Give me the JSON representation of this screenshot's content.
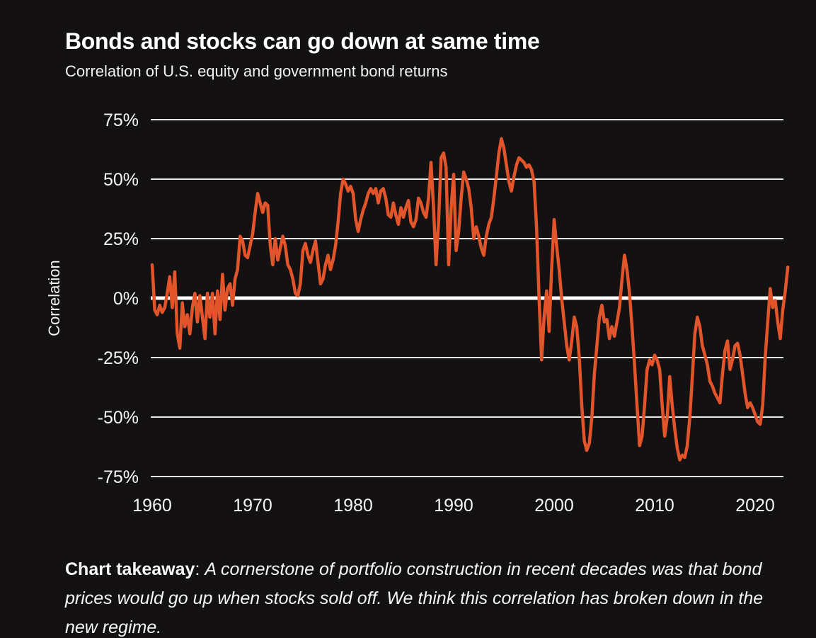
{
  "page": {
    "background_color": "#131111",
    "text_color": "#ffffff"
  },
  "header": {
    "title": "Bonds and stocks can go down at same time",
    "subtitle": "Correlation of U.S. equity and government bond returns"
  },
  "takeaway": {
    "label": "Chart takeaway",
    "separator": ": ",
    "text": "A cornerstone of portfolio construction in recent decades was that bond prices would go up when stocks sold off. We think this correlation has broken down in the new regime."
  },
  "chart_data": {
    "type": "line",
    "title": "Bonds and stocks can go down at same time",
    "subtitle": "Correlation of U.S. equity and government bond returns",
    "xlabel": "",
    "ylabel": "Correlation",
    "unit": "%",
    "grid": "horizontal",
    "legend_position": "none",
    "line_color": "#e25429",
    "gridline_color": "#e8e8e8",
    "zero_line_color": "#ffffff",
    "tick_text_color": "#f5f5f5",
    "xlim": [
      1959.9,
      2023.5
    ],
    "ylim": [
      -75,
      75
    ],
    "y_ticks": [
      75,
      50,
      25,
      0,
      -25,
      -50,
      -75
    ],
    "y_tick_labels": [
      "75%",
      "50%",
      "25%",
      "0%",
      "-25%",
      "-50%",
      "-75%"
    ],
    "x_ticks": [
      1960,
      1970,
      1980,
      1990,
      2000,
      2010,
      2020
    ],
    "x_tick_labels": [
      "1960",
      "1970",
      "1980",
      "1990",
      "2000",
      "2010",
      "2020"
    ],
    "x_start": 1960.0,
    "x_step": 0.25,
    "series": [
      {
        "name": "Correlation of U.S. equity and government bond returns",
        "values": [
          14,
          -5,
          -7,
          -3,
          -6,
          -4,
          2,
          9,
          -4,
          11,
          -15,
          -21,
          -2,
          -12,
          -7,
          -15,
          -4,
          2,
          -10,
          1,
          -8,
          -17,
          2,
          -8,
          2,
          -15,
          3,
          -9,
          10,
          -5,
          4,
          6,
          -3,
          8,
          12,
          26,
          24,
          18,
          17,
          22,
          27,
          36,
          44,
          40,
          36,
          40,
          39,
          22,
          14,
          25,
          16,
          21,
          26,
          22,
          14,
          12,
          8,
          2,
          1,
          6,
          20,
          23,
          18,
          15,
          20,
          24,
          15,
          6,
          8,
          14,
          18,
          12,
          16,
          22,
          32,
          44,
          50,
          48,
          45,
          47,
          44,
          33,
          28,
          33,
          37,
          40,
          44,
          46,
          44,
          46,
          40,
          45,
          46,
          42,
          35,
          34,
          40,
          35,
          31,
          38,
          34,
          38,
          41,
          32,
          30,
          33,
          42,
          40,
          36,
          34,
          42,
          57,
          38,
          14,
          32,
          59,
          61,
          55,
          14,
          38,
          52,
          20,
          28,
          42,
          53,
          50,
          46,
          38,
          25,
          30,
          26,
          21,
          18,
          26,
          31,
          34,
          42,
          51,
          61,
          67,
          63,
          56,
          49,
          45,
          51,
          56,
          59,
          58,
          57,
          55,
          56,
          54,
          49,
          30,
          0,
          -26,
          -8,
          3,
          -14,
          12,
          33,
          22,
          12,
          0,
          -10,
          -20,
          -26,
          -18,
          -8,
          -12,
          -25,
          -45,
          -60,
          -64,
          -61,
          -50,
          -32,
          -20,
          -8,
          -3,
          -10,
          -9,
          -17,
          -12,
          -16,
          -10,
          -4,
          8,
          18,
          12,
          2,
          -12,
          -28,
          -45,
          -62,
          -58,
          -45,
          -30,
          -26,
          -28,
          -24,
          -26,
          -30,
          -45,
          -58,
          -50,
          -33,
          -45,
          -55,
          -63,
          -68,
          -66,
          -67,
          -62,
          -50,
          -33,
          -15,
          -8,
          -12,
          -20,
          -24,
          -28,
          -35,
          -37,
          -40,
          -42,
          -44,
          -32,
          -22,
          -18,
          -30,
          -26,
          -20,
          -19,
          -24,
          -32,
          -40,
          -46,
          -44,
          -46,
          -49,
          -52,
          -53,
          -45,
          -25,
          -10,
          4,
          -4,
          -1,
          -10,
          -17,
          -5,
          3,
          13
        ]
      }
    ]
  }
}
